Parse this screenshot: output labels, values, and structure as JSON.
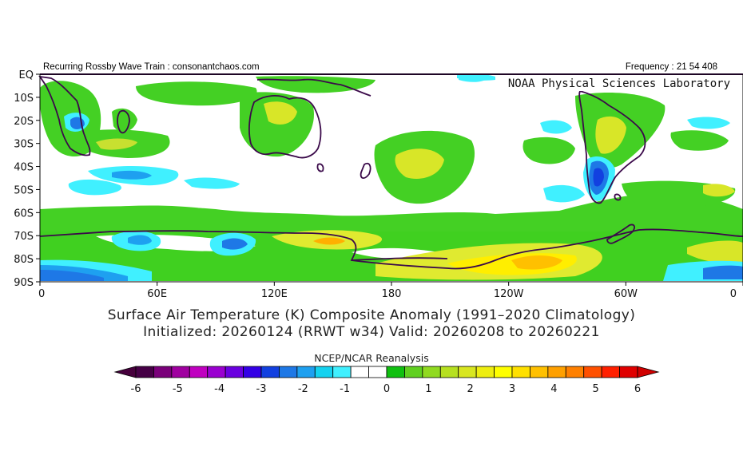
{
  "header": {
    "left_text": "Recurring Rossby Wave Train : consonantchaos.com",
    "right_text": "Frequency : 21 54 408"
  },
  "map": {
    "credit": "NOAA Physical Sciences Laboratory",
    "lat_labels": [
      "EQ",
      "10S",
      "20S",
      "30S",
      "40S",
      "50S",
      "60S",
      "70S",
      "80S",
      "90S"
    ],
    "lon_labels": [
      "0",
      "60E",
      "120E",
      "180",
      "120W",
      "60W",
      "0"
    ],
    "coastline_color": "#3b0a4a"
  },
  "title": {
    "line1": "Surface Air Temperature (K) Composite Anomaly (1991–2020 Climatology)",
    "line2": "Initialized: 20260124 (RRWT w34) Valid: 20260208 to 20260221"
  },
  "colorbar": {
    "title": "NCEP/NCAR Reanalysis",
    "tick_labels": [
      "-6",
      "-5",
      "-4",
      "-3",
      "-2",
      "-1",
      "0",
      "1",
      "2",
      "3",
      "4",
      "5",
      "6"
    ],
    "colors": [
      "#460046",
      "#7a007a",
      "#a000a0",
      "#c000c0",
      "#9a00d0",
      "#6a00e0",
      "#3400e6",
      "#1240e0",
      "#1e78e6",
      "#1ea0f0",
      "#14d2f0",
      "#40f0ff",
      "#ffffff",
      "#ffffff",
      "#10c010",
      "#60d020",
      "#90da20",
      "#b6e020",
      "#d8e620",
      "#eeee10",
      "#ffff00",
      "#ffe000",
      "#ffc000",
      "#ffa000",
      "#ff8000",
      "#ff5000",
      "#ff2000",
      "#e00000"
    ],
    "under_color": "#46003c",
    "over_color": "#d00000"
  }
}
